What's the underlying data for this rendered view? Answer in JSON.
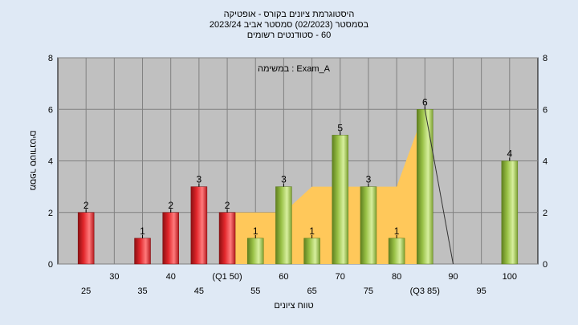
{
  "chart_data": {
    "type": "bar",
    "title_lines": [
      "היסטוגרמת ציונים בקורס - אופטיקה",
      "בסמסטר  (02/2023)  סמסטר אביב 2023/24",
      "60 - סטודנטים רשומים"
    ],
    "annotation": "במשימה : Exam_A",
    "xlabel": "טווח ציונים",
    "ylabel": "מספר סטודנטים",
    "ylim": [
      0,
      8
    ],
    "yticks": [
      0,
      2,
      4,
      6,
      8
    ],
    "grid": true,
    "x_tick_labels": [
      {
        "x": 25,
        "label": "25",
        "row": 2
      },
      {
        "x": 30,
        "label": "30",
        "row": 1
      },
      {
        "x": 35,
        "label": "35",
        "row": 2
      },
      {
        "x": 40,
        "label": "40",
        "row": 1
      },
      {
        "x": 45,
        "label": "45",
        "row": 2
      },
      {
        "x": 50,
        "label": "(Q1 50)",
        "row": 1
      },
      {
        "x": 55,
        "label": "55",
        "row": 2
      },
      {
        "x": 60,
        "label": "60",
        "row": 1
      },
      {
        "x": 65,
        "label": "65",
        "row": 2
      },
      {
        "x": 70,
        "label": "70",
        "row": 1
      },
      {
        "x": 75,
        "label": "75",
        "row": 2
      },
      {
        "x": 80,
        "label": "80",
        "row": 1
      },
      {
        "x": 85,
        "label": "(Q3 85)",
        "row": 2
      },
      {
        "x": 90,
        "label": "90",
        "row": 1
      },
      {
        "x": 95,
        "label": "95",
        "row": 2
      },
      {
        "x": 100,
        "label": "100",
        "row": 1
      }
    ],
    "bars": [
      {
        "x": 25,
        "value": 2,
        "label": "2",
        "color": "red"
      },
      {
        "x": 35,
        "value": 1,
        "label": "1",
        "color": "red"
      },
      {
        "x": 40,
        "value": 2,
        "label": "2",
        "color": "red"
      },
      {
        "x": 45,
        "value": 3,
        "label": "3",
        "color": "red"
      },
      {
        "x": 50,
        "value": 2,
        "label": "2",
        "color": "red"
      },
      {
        "x": 55,
        "value": 1,
        "label": "1",
        "color": "green"
      },
      {
        "x": 60,
        "value": 3,
        "label": "3",
        "color": "green"
      },
      {
        "x": 65,
        "value": 1,
        "label": "1",
        "color": "green"
      },
      {
        "x": 70,
        "value": 5,
        "label": "5",
        "color": "green"
      },
      {
        "x": 75,
        "value": 3,
        "label": "3",
        "color": "green"
      },
      {
        "x": 80,
        "value": 1,
        "label": "1",
        "color": "green"
      },
      {
        "x": 85,
        "value": 6,
        "label": "6",
        "color": "green"
      },
      {
        "x": 100,
        "value": 4,
        "label": "4",
        "color": "green"
      }
    ],
    "area": [
      {
        "x": 50,
        "y": 2
      },
      {
        "x": 60,
        "y": 2
      },
      {
        "x": 65,
        "y": 3
      },
      {
        "x": 75,
        "y": 3
      },
      {
        "x": 80,
        "y": 3
      },
      {
        "x": 85,
        "y": 6
      }
    ],
    "trend_line": [
      {
        "x": 85,
        "y": 6
      },
      {
        "x": 90,
        "y": 0
      }
    ],
    "colors": {
      "background": "#dfe9f5",
      "plot": "#c0c0c0",
      "area": "#ffc85a",
      "red_bar": "#e2262b",
      "green_bar": "#99c146",
      "grid": "#808080"
    }
  }
}
